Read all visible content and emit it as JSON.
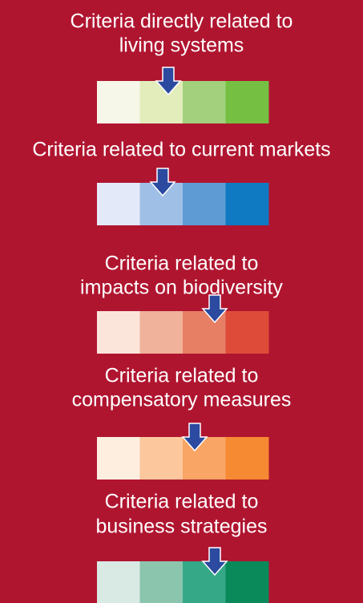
{
  "sections": [
    {
      "title_lines": [
        "Criteria directly related to",
        "living systems"
      ],
      "colors": [
        "#f6f7e9",
        "#e2edbb",
        "#a2d07c",
        "#75c043"
      ]
    },
    {
      "title_lines": [
        "Criteria related to current markets"
      ],
      "colors": [
        "#e3e9f8",
        "#a0bfe6",
        "#5e9bd4",
        "#0f7ac2"
      ]
    },
    {
      "title_lines": [
        "Criteria related to",
        "impacts on biodiversity"
      ],
      "colors": [
        "#fbe5da",
        "#f0b29a",
        "#e77f65",
        "#df4b39"
      ]
    },
    {
      "title_lines": [
        "Criteria related to",
        "compensatory measures"
      ],
      "colors": [
        "#fdeee0",
        "#fcc79d",
        "#f9a566",
        "#f58a32"
      ]
    },
    {
      "title_lines": [
        "Criteria related to",
        "business strategies"
      ],
      "colors": [
        "#d9e9e4",
        "#8bc5ae",
        "#35a888",
        "#0a8a5b"
      ]
    }
  ]
}
